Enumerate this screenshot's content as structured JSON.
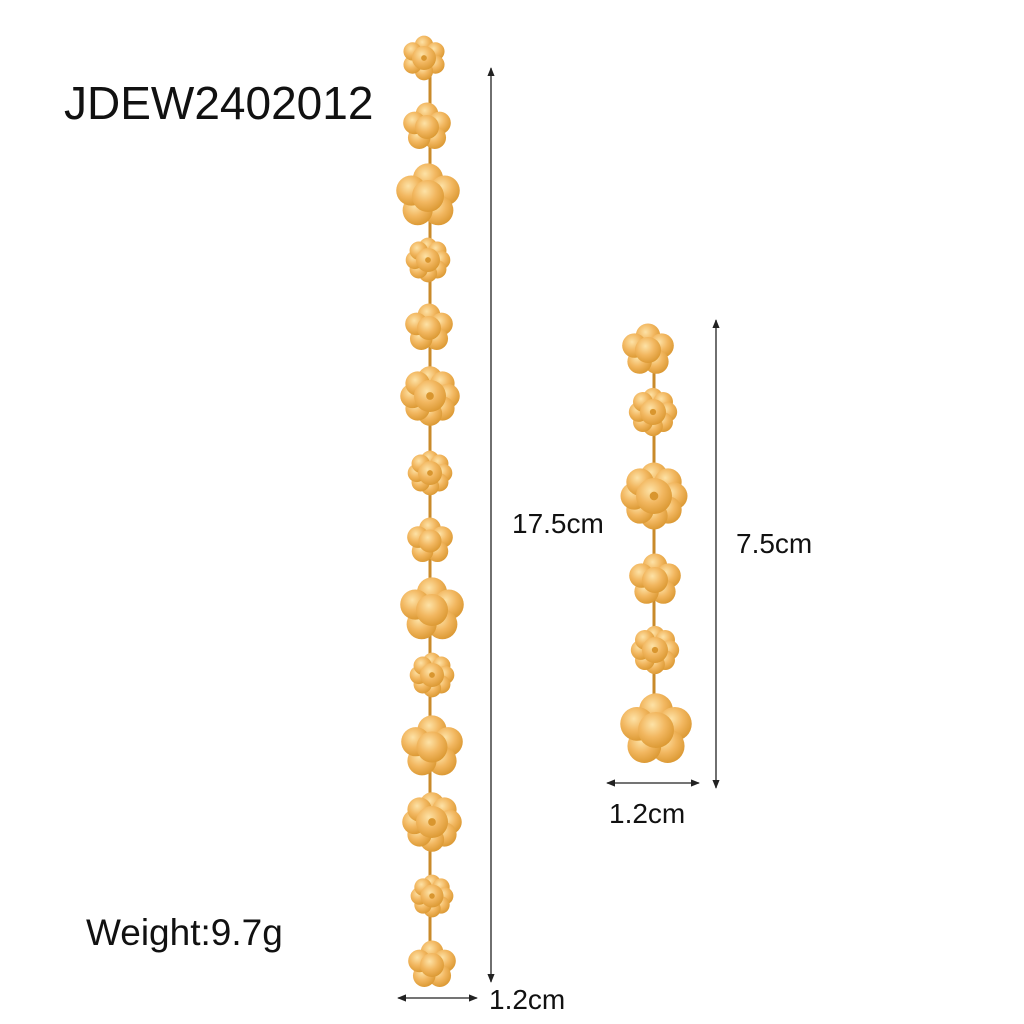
{
  "product": {
    "sku": "JDEW2402012",
    "weight_label": "Weight:9.7g"
  },
  "dimensions": {
    "long_earring_length": "17.5cm",
    "long_earring_width": "1.2cm",
    "short_earring_length": "7.5cm",
    "short_earring_width": "1.2cm"
  },
  "colors": {
    "gold": "#f2b760",
    "gold_dark": "#d9962f",
    "gold_light": "#fbd58e",
    "line": "#222222"
  },
  "earrings": {
    "long_flower_count": 14,
    "short_flower_count": 6
  }
}
